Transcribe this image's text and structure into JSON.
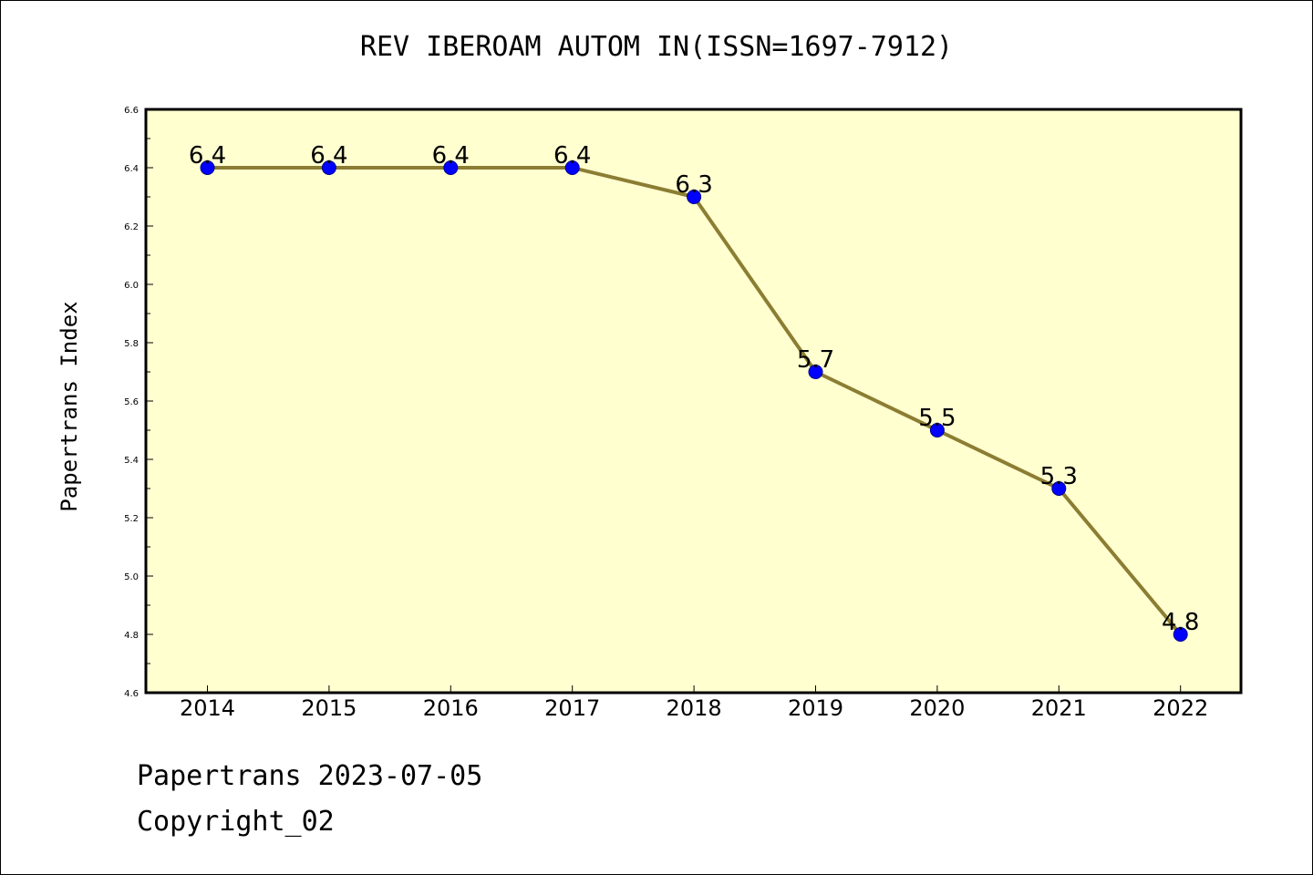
{
  "chart_data": {
    "type": "line",
    "title": "REV IBEROAM AUTOM IN(ISSN=1697-7912)",
    "xlabel": "",
    "ylabel": "Papertrans Index",
    "categories": [
      "2014",
      "2015",
      "2016",
      "2017",
      "2018",
      "2019",
      "2020",
      "2021",
      "2022"
    ],
    "values": [
      6.4,
      6.4,
      6.4,
      6.4,
      6.3,
      5.7,
      5.5,
      5.3,
      4.8
    ],
    "data_labels": [
      "6.4",
      "6.4",
      "6.4",
      "6.4",
      "6.3",
      "5.7",
      "5.5",
      "5.3",
      "4.8"
    ],
    "ylim": [
      4.6,
      6.6
    ],
    "yticks": [
      "4.6",
      "4.8",
      "5.0",
      "5.2",
      "5.4",
      "5.6",
      "5.8",
      "6.0",
      "6.2",
      "6.4",
      "6.6"
    ],
    "grid": false,
    "legend": "none",
    "colors": {
      "plot_background": "#FFFFD0",
      "line": "#8B7D32",
      "marker": "#0000FF"
    }
  },
  "footer": {
    "line1": "Papertrans 2023-07-05",
    "line2": "Copyright_02"
  }
}
